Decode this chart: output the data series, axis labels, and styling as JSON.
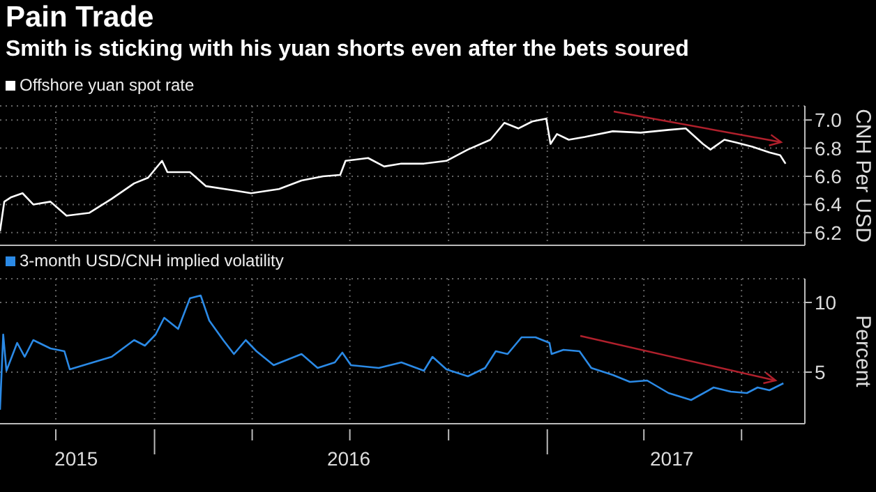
{
  "chart_data": [
    {
      "type": "line",
      "title": "Pain Trade",
      "subtitle": "Smith is sticking with his yuan shorts even after the bets soured",
      "ylabel": "CNH Per USD",
      "legend": "top left",
      "grid": true,
      "tick_labels": "y",
      "xlim": [
        "2015-08-10",
        "2017-08-29"
      ],
      "xticks": [
        {
          "value": "2015-10-01",
          "label": null
        },
        {
          "value": "2016-01-01",
          "label": null
        },
        {
          "value": "2016-04-01",
          "label": null
        },
        {
          "value": "2016-07-01",
          "label": null
        },
        {
          "value": "2016-10-01",
          "label": null
        },
        {
          "value": "2017-01-01",
          "label": null
        },
        {
          "value": "2017-04-01",
          "label": null
        },
        {
          "value": "2017-07-01",
          "label": null
        }
      ],
      "ylim": [
        6.11,
        7.1
      ],
      "yticks": [
        6.2,
        6.4,
        6.6,
        6.8,
        {
          "value": 7.0,
          "label": "7.0"
        }
      ],
      "x": [
        "2015-08-10",
        "2015-08-14",
        "2015-08-20",
        "2015-08-31",
        "2015-09-10",
        "2015-09-26",
        "2015-10-11",
        "2015-11-01",
        "2015-11-22",
        "2015-12-13",
        "2015-12-26",
        "2016-01-08",
        "2016-01-13",
        "2016-02-03",
        "2016-02-18",
        "2016-03-15",
        "2016-03-31",
        "2016-04-26",
        "2016-05-17",
        "2016-06-06",
        "2016-06-22",
        "2016-06-27",
        "2016-07-18",
        "2016-08-02",
        "2016-08-18",
        "2016-09-08",
        "2016-09-29",
        "2016-10-19",
        "2016-11-09",
        "2016-11-22",
        "2016-12-05",
        "2016-12-18",
        "2016-12-31",
        "2017-01-04",
        "2017-01-10",
        "2017-01-21",
        "2017-02-05",
        "2017-03-03",
        "2017-03-29",
        "2017-04-24",
        "2017-05-10",
        "2017-05-26",
        "2017-06-02",
        "2017-06-15",
        "2017-06-26",
        "2017-07-11",
        "2017-07-27",
        "2017-08-06",
        "2017-08-11"
      ],
      "series": [
        {
          "name": "Offshore yuan spot rate",
          "color": "#ffffff",
          "values": [
            6.21,
            6.42,
            6.45,
            6.48,
            6.4,
            6.42,
            6.32,
            6.34,
            6.44,
            6.55,
            6.59,
            6.71,
            6.63,
            6.63,
            6.53,
            6.5,
            6.48,
            6.51,
            6.57,
            6.6,
            6.61,
            6.71,
            6.73,
            6.67,
            6.69,
            6.69,
            6.71,
            6.79,
            6.86,
            6.98,
            6.94,
            6.99,
            7.01,
            6.83,
            6.9,
            6.86,
            6.88,
            6.92,
            6.91,
            6.93,
            6.94,
            6.83,
            6.79,
            6.86,
            6.84,
            6.81,
            6.77,
            6.75,
            6.69
          ]
        }
      ]
    },
    {
      "type": "line",
      "ylabel": "Percent",
      "legend": "top left",
      "grid": true,
      "xlim": [
        "2015-08-10",
        "2017-08-29"
      ],
      "xticks": [
        {
          "value": "2015-10-01",
          "label": null
        },
        {
          "value": "2015-10-20",
          "label": "2015"
        },
        {
          "value": "2016-01-01",
          "label": null
        },
        {
          "value": "2016-04-01",
          "label": null
        },
        {
          "value": "2016-07-01",
          "label": null
        },
        {
          "value": "2016-06-30",
          "label": "2016"
        },
        {
          "value": "2016-10-01",
          "label": null
        },
        {
          "value": "2017-01-01",
          "label": null
        },
        {
          "value": "2017-04-01",
          "label": null
        },
        {
          "value": "2017-04-27",
          "label": "2017"
        },
        {
          "value": "2017-07-01",
          "label": null
        }
      ],
      "ylim": [
        1.3,
        11.7
      ],
      "yticks": [
        5,
        10
      ],
      "x": [
        "2015-08-10",
        "2015-08-13",
        "2015-08-16",
        "2015-08-26",
        "2015-09-02",
        "2015-09-10",
        "2015-09-26",
        "2015-10-09",
        "2015-10-14",
        "2015-10-27",
        "2015-11-22",
        "2015-12-13",
        "2015-12-23",
        "2016-01-02",
        "2016-01-10",
        "2016-01-23",
        "2016-02-03",
        "2016-02-13",
        "2016-02-21",
        "2016-03-05",
        "2016-03-15",
        "2016-03-26",
        "2016-04-05",
        "2016-04-21",
        "2016-05-17",
        "2016-06-01",
        "2016-06-17",
        "2016-06-24",
        "2016-07-02",
        "2016-07-28",
        "2016-08-18",
        "2016-09-08",
        "2016-09-16",
        "2016-09-29",
        "2016-10-19",
        "2016-11-04",
        "2016-11-14",
        "2016-11-25",
        "2016-12-08",
        "2016-12-21",
        "2017-01-03",
        "2017-01-05",
        "2017-01-16",
        "2017-01-31",
        "2017-02-11",
        "2017-03-03",
        "2017-03-19",
        "2017-04-04",
        "2017-04-24",
        "2017-05-15",
        "2017-06-05",
        "2017-06-21",
        "2017-07-06",
        "2017-07-16",
        "2017-07-27",
        "2017-08-09"
      ],
      "series": [
        {
          "name": "3-month USD/CNH implied volatility",
          "color": "#2b8ae6",
          "values": [
            2.3,
            7.7,
            5.1,
            7.1,
            6.1,
            7.3,
            6.7,
            6.5,
            5.2,
            5.5,
            6.1,
            7.3,
            6.9,
            7.7,
            8.9,
            8.1,
            10.3,
            10.5,
            8.7,
            7.3,
            6.3,
            7.3,
            6.5,
            5.5,
            6.3,
            5.3,
            5.7,
            6.4,
            5.5,
            5.3,
            5.7,
            5.1,
            6.1,
            5.2,
            4.7,
            5.3,
            6.5,
            6.3,
            7.5,
            7.5,
            7.1,
            6.3,
            6.6,
            6.5,
            5.3,
            4.8,
            4.3,
            4.4,
            3.5,
            3.0,
            3.9,
            3.6,
            3.5,
            3.9,
            3.7,
            4.2
          ]
        }
      ]
    }
  ]
}
